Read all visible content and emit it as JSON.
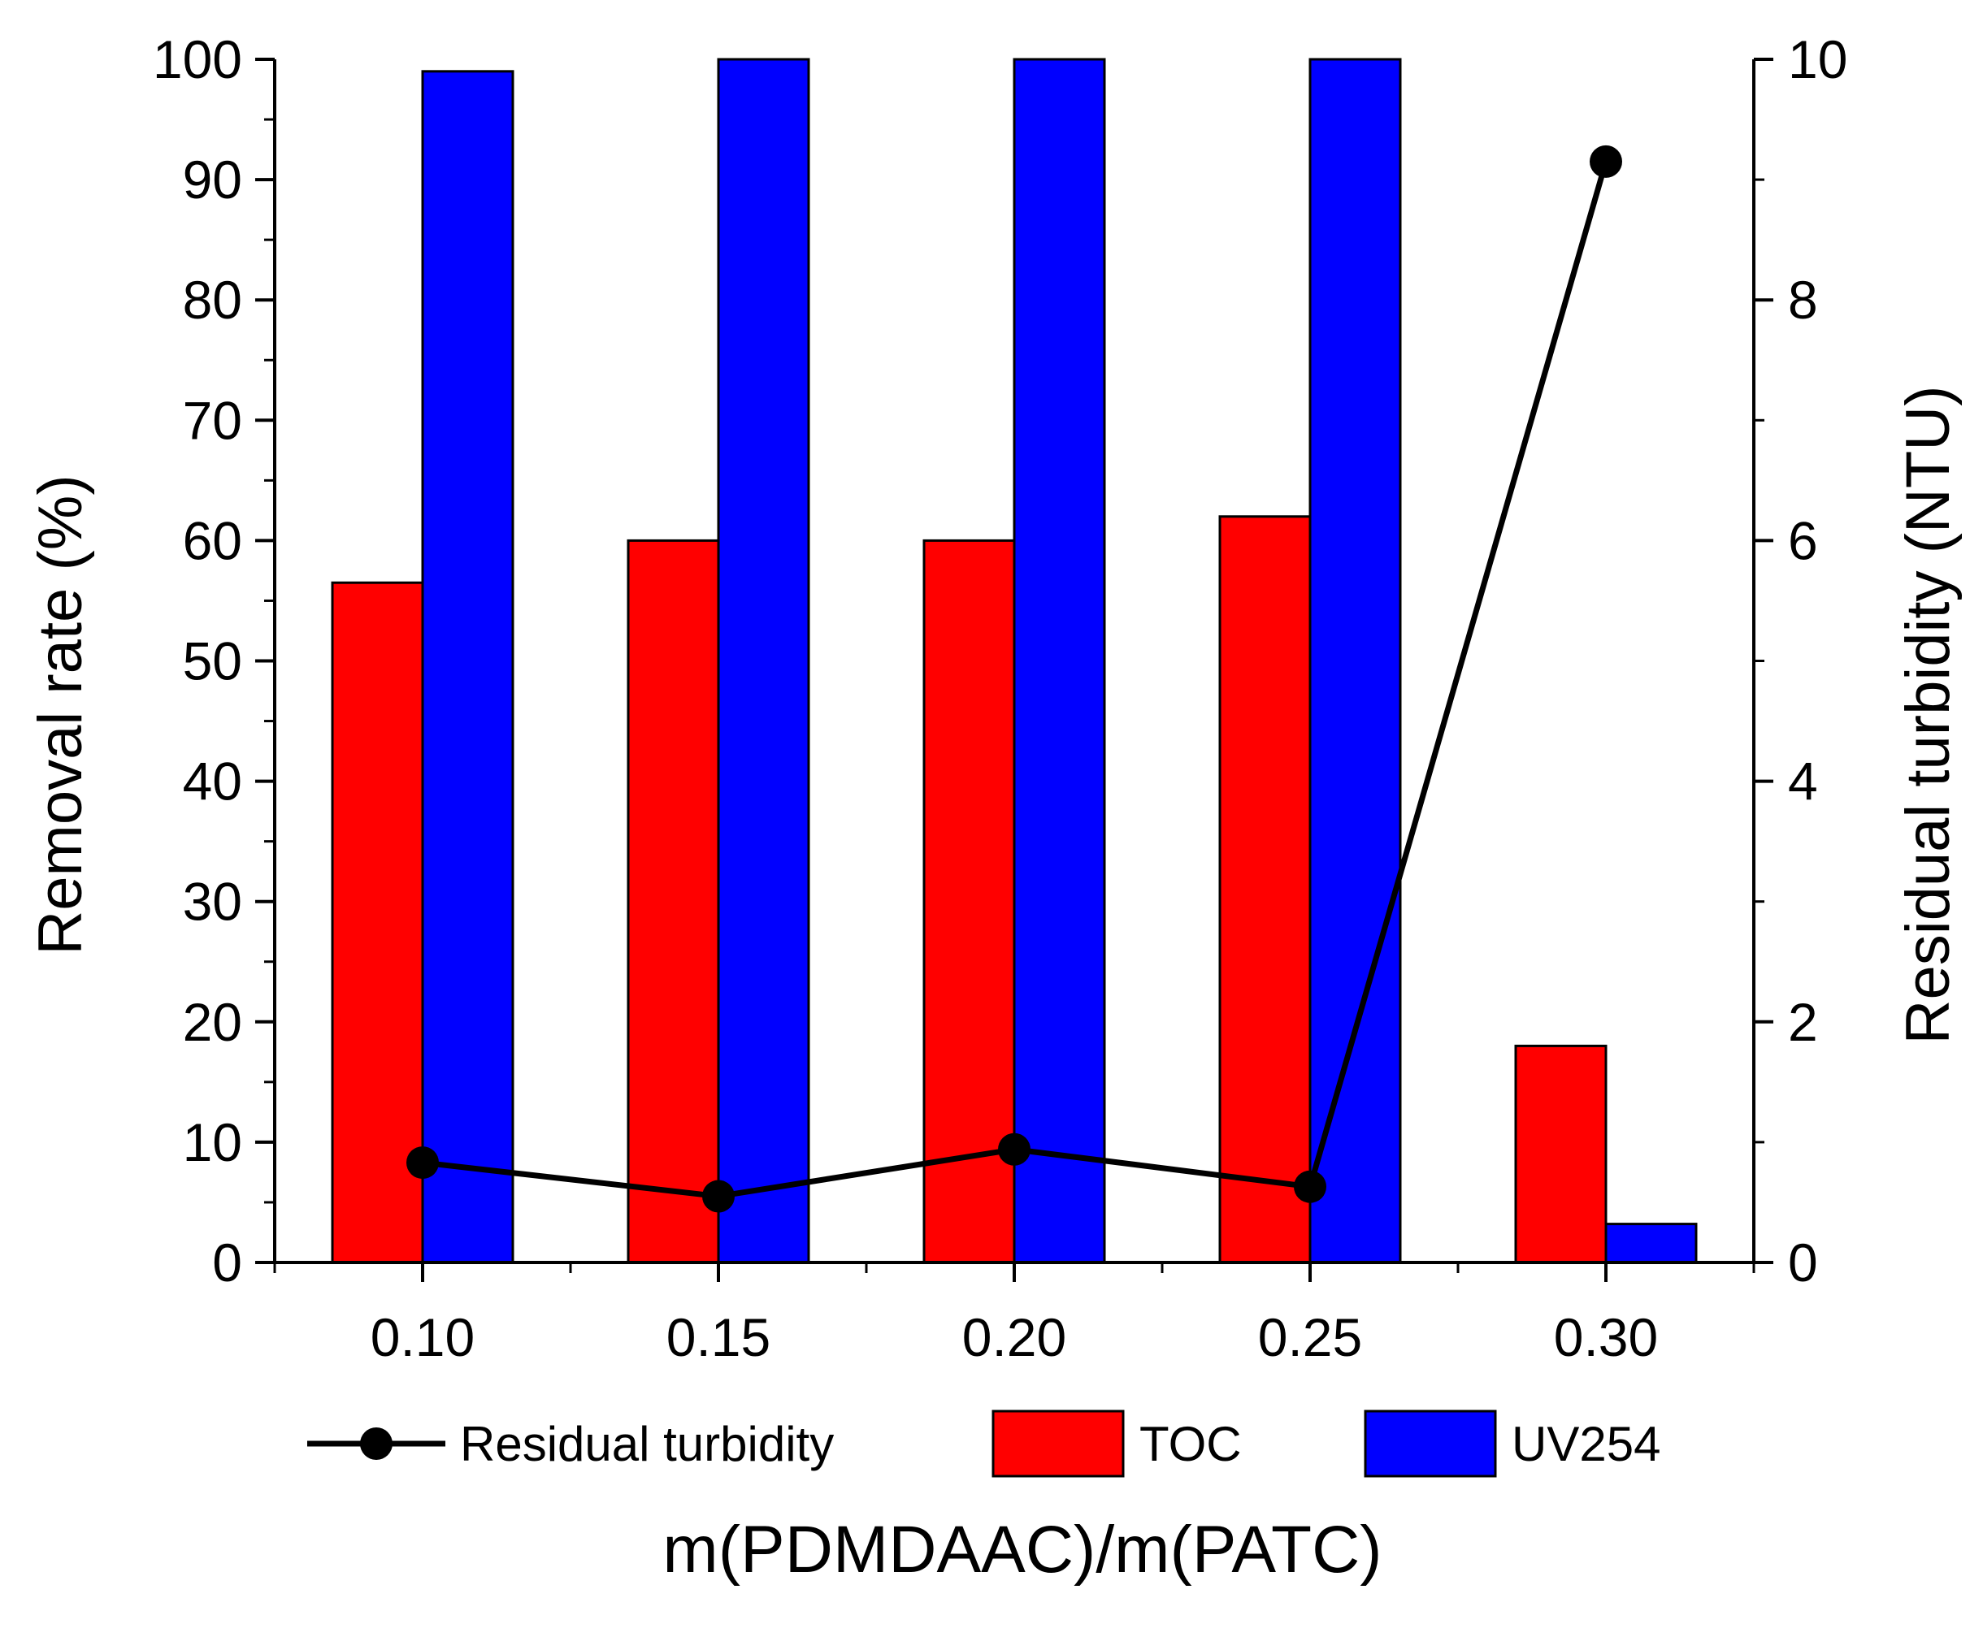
{
  "chart_data": {
    "type": "bar+line",
    "categories": [
      "0.10",
      "0.15",
      "0.20",
      "0.25",
      "0.30"
    ],
    "xlabel": "m(PDMDAAC)/m(PATC)",
    "ylabel_left": "Removal rate (%)",
    "ylabel_right": "Residual turbidity (NTU)",
    "ylim_left": [
      0,
      100
    ],
    "ylim_right": [
      0,
      10
    ],
    "yticks_left": [
      "0",
      "10",
      "20",
      "30",
      "40",
      "50",
      "60",
      "70",
      "80",
      "90",
      "100"
    ],
    "yticks_right": [
      "0",
      "2",
      "4",
      "6",
      "8",
      "10"
    ],
    "series": [
      {
        "name": "TOC",
        "kind": "bar",
        "axis": "left",
        "color": "#ff0000",
        "values": [
          56.5,
          60.0,
          60.0,
          62.0,
          18.0
        ]
      },
      {
        "name": "UV254",
        "kind": "bar",
        "axis": "left",
        "color": "#0000ff",
        "values": [
          99.0,
          100.0,
          100.0,
          100.0,
          3.2
        ]
      },
      {
        "name": "Residual turbidity",
        "kind": "line",
        "axis": "right",
        "color": "#000000",
        "values": [
          0.83,
          0.55,
          0.94,
          0.63,
          9.15
        ]
      }
    ],
    "legend": {
      "placement": "bottom",
      "order": [
        "Residual turbidity",
        "TOC",
        "UV254"
      ]
    }
  }
}
